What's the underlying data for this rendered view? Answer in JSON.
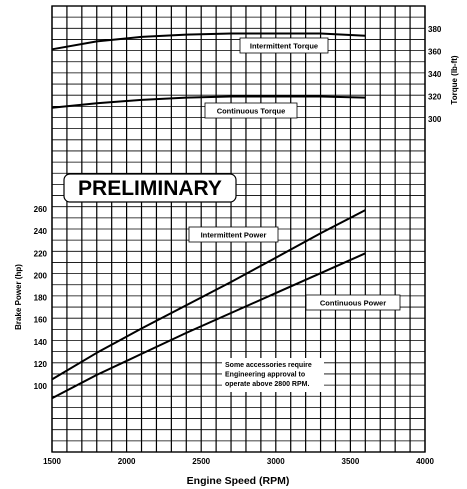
{
  "chart_data": {
    "type": "line",
    "xlabel": "Engine Speed (RPM)",
    "ylabel_left": "Brake Power (hp)",
    "ylabel_right": "Torque (lb-ft)",
    "xlim": [
      1500,
      4000
    ],
    "x_ticks": [
      1500,
      2000,
      2500,
      3000,
      3500,
      4000
    ],
    "y_left_ticks": [
      100,
      120,
      140,
      160,
      180,
      200,
      220,
      240,
      260
    ],
    "y_right_ticks": [
      300,
      320,
      340,
      360,
      380
    ],
    "grid": true,
    "watermark": "PRELIMINARY",
    "note": [
      "Some accessories require",
      "Engineering approval to",
      "operate above 2800 RPM."
    ],
    "series": [
      {
        "name": "Intermittent Torque",
        "axis": "right",
        "x": [
          1500,
          1800,
          2100,
          2400,
          2700,
          3000,
          3300,
          3600
        ],
        "values": [
          362,
          369,
          373,
          375,
          376,
          376,
          376,
          374
        ]
      },
      {
        "name": "Continuous Torque",
        "axis": "right",
        "x": [
          1500,
          1800,
          2100,
          2400,
          2700,
          3000,
          3300,
          3600
        ],
        "values": [
          310,
          314,
          317,
          319,
          320,
          320,
          320,
          319
        ]
      },
      {
        "name": "Intermittent Power",
        "axis": "left",
        "x": [
          1500,
          1800,
          2100,
          2400,
          2700,
          3000,
          3300,
          3600
        ],
        "values": [
          106,
          130,
          152,
          173,
          194,
          216,
          238,
          259
        ]
      },
      {
        "name": "Continuous Power",
        "axis": "left",
        "x": [
          1500,
          1800,
          2100,
          2400,
          2700,
          3000,
          3300,
          3600
        ],
        "values": [
          89,
          110,
          129,
          148,
          166,
          184,
          202,
          220
        ]
      }
    ]
  }
}
